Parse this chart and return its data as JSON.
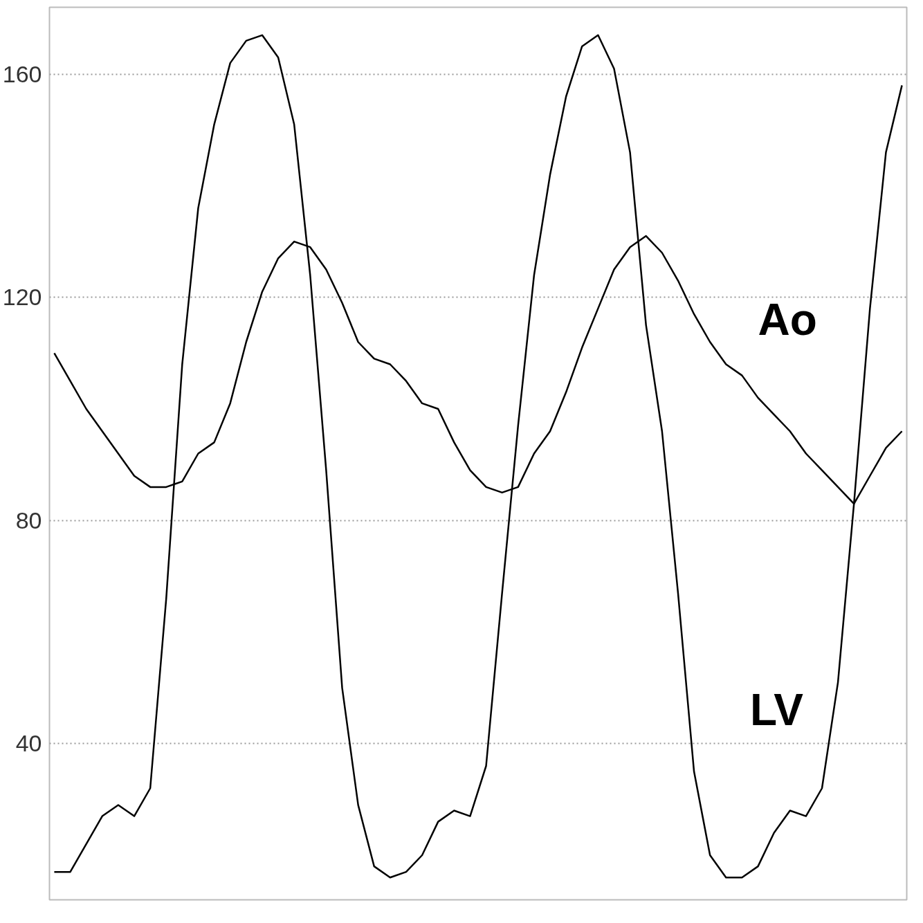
{
  "chart_data": {
    "type": "line",
    "categories": [
      null,
      null,
      null,
      null,
      null,
      null,
      null,
      null,
      null,
      null,
      null,
      null,
      null,
      null,
      null,
      null,
      null,
      null,
      null,
      null,
      null,
      null,
      null,
      null,
      null,
      null,
      null,
      null,
      null,
      null,
      null,
      null,
      null,
      null,
      null,
      null,
      null,
      null,
      null,
      null,
      null,
      null,
      null,
      null,
      null,
      null,
      null,
      null,
      null,
      null,
      null,
      null,
      null,
      null
    ],
    "series": [
      {
        "name": "LV",
        "color": "#000000",
        "values": [
          17,
          17,
          22,
          27,
          29,
          27,
          32,
          66,
          108,
          136,
          151,
          162,
          166,
          167,
          163,
          151,
          124,
          89,
          50,
          29,
          18,
          16,
          17,
          20,
          26,
          28,
          27,
          36,
          67,
          97,
          124,
          142,
          156,
          165,
          167,
          161,
          146,
          115,
          96,
          67,
          35,
          20,
          16,
          16,
          18,
          24,
          28,
          27,
          32,
          51,
          83,
          118,
          146,
          158
        ]
      },
      {
        "name": "Ao",
        "color": "#000000",
        "values": [
          110,
          105,
          100,
          96,
          92,
          88,
          86,
          86,
          87,
          92,
          94,
          101,
          112,
          121,
          127,
          130,
          129,
          125,
          119,
          112,
          109,
          108,
          105,
          101,
          100,
          94,
          89,
          86,
          85,
          86,
          92,
          96,
          103,
          111,
          118,
          125,
          129,
          131,
          128,
          123,
          117,
          112,
          108,
          106,
          102,
          99,
          96,
          92,
          89,
          86,
          83,
          88,
          93,
          96
        ]
      }
    ],
    "ylim": [
      12,
      172
    ],
    "yticks": [
      40,
      80,
      120,
      160
    ],
    "grid": "y",
    "tick_labels": "y",
    "legend": false,
    "marker": "none",
    "line_style": "solid"
  }
}
